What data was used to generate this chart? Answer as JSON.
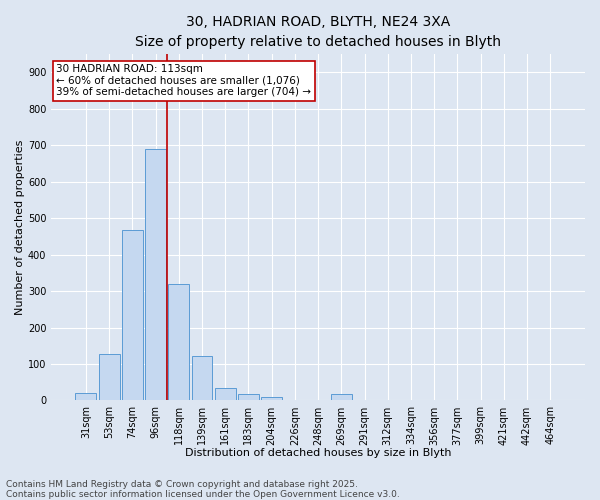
{
  "title_line1": "30, HADRIAN ROAD, BLYTH, NE24 3XA",
  "title_line2": "Size of property relative to detached houses in Blyth",
  "xlabel": "Distribution of detached houses by size in Blyth",
  "ylabel": "Number of detached properties",
  "categories": [
    "31sqm",
    "53sqm",
    "74sqm",
    "96sqm",
    "118sqm",
    "139sqm",
    "161sqm",
    "183sqm",
    "204sqm",
    "226sqm",
    "248sqm",
    "269sqm",
    "291sqm",
    "312sqm",
    "334sqm",
    "356sqm",
    "377sqm",
    "399sqm",
    "421sqm",
    "442sqm",
    "464sqm"
  ],
  "values": [
    20,
    128,
    468,
    688,
    320,
    122,
    35,
    18,
    10,
    0,
    0,
    18,
    0,
    0,
    0,
    0,
    0,
    0,
    0,
    0,
    0
  ],
  "bar_color": "#c5d8f0",
  "bar_edge_color": "#5b9bd5",
  "vline_color": "#c00000",
  "vline_x_index": 3.5,
  "annotation_text": "30 HADRIAN ROAD: 113sqm\n← 60% of detached houses are smaller (1,076)\n39% of semi-detached houses are larger (704) →",
  "annotation_box_color": "#ffffff",
  "annotation_box_edge_color": "#c00000",
  "ylim": [
    0,
    950
  ],
  "yticks": [
    0,
    100,
    200,
    300,
    400,
    500,
    600,
    700,
    800,
    900
  ],
  "background_color": "#dde6f2",
  "plot_bg_color": "#dde6f2",
  "footer_line1": "Contains HM Land Registry data © Crown copyright and database right 2025.",
  "footer_line2": "Contains public sector information licensed under the Open Government Licence v3.0.",
  "title_fontsize": 10,
  "subtitle_fontsize": 9,
  "axis_label_fontsize": 8,
  "tick_fontsize": 7,
  "annotation_fontsize": 7.5,
  "footer_fontsize": 6.5
}
